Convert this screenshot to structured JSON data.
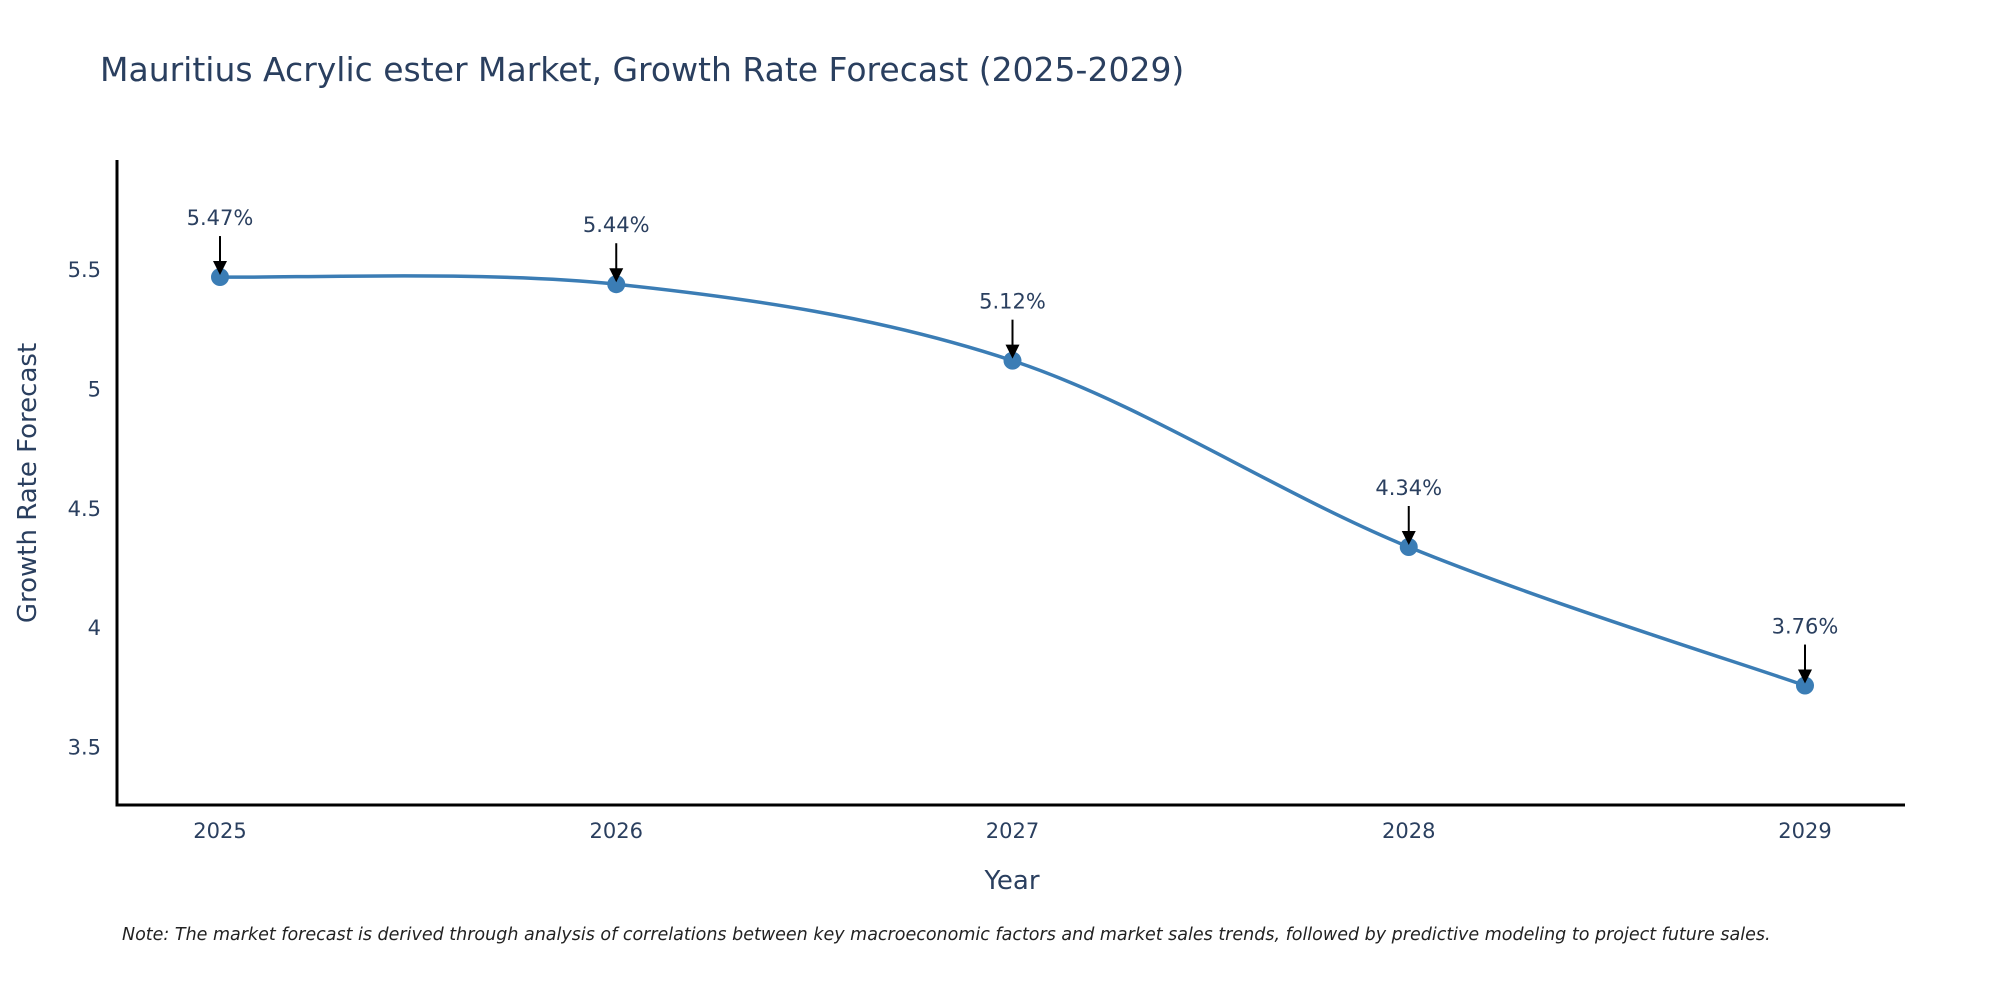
{
  "chart_data": {
    "type": "line",
    "title": "Mauritius Acrylic ester Market, Growth Rate Forecast (2025-2029)",
    "xlabel": "Year",
    "ylabel": "Growth Rate Forecast",
    "categories": [
      "2025",
      "2026",
      "2027",
      "2028",
      "2029"
    ],
    "series": [
      {
        "name": "Growth Rate Forecast",
        "values": [
          5.47,
          5.44,
          5.12,
          4.34,
          3.76
        ],
        "color": "#3b7db5"
      }
    ],
    "annotations": [
      "5.47%",
      "5.44%",
      "5.12%",
      "4.34%",
      "3.76%"
    ],
    "yticks": [
      3.5,
      4,
      4.5,
      5,
      5.5
    ],
    "ytick_labels": [
      "3.5",
      "4",
      "4.5",
      "5",
      "5.5"
    ],
    "ylim": [
      3.26,
      5.96
    ],
    "grid": false,
    "line_shape": "spline",
    "note": "Note: The market forecast is derived through analysis of correlations between key macroeconomic factors and market sales trends, followed by predictive modeling to project future sales."
  }
}
